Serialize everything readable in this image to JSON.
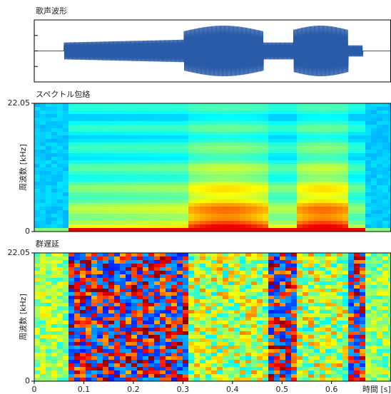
{
  "chart_data": [
    {
      "type": "waveform",
      "title": "歌声波形",
      "color": "#2a5ba8"
    },
    {
      "type": "envelope",
      "title": "スペクトル包絡",
      "ylabel": "周波数 [kHz]",
      "ylim": [
        0,
        22.05
      ],
      "yticks": [
        0,
        22.05
      ]
    },
    {
      "type": "groupdelay",
      "title": "群遅延",
      "ylabel": "周波数 [kHz]",
      "ylim": [
        0,
        22.05
      ],
      "yticks": [
        0,
        22.05
      ],
      "xlim": [
        0,
        0.72
      ],
      "xticks": [
        0,
        0.1,
        0.2,
        0.3,
        0.4,
        0.5,
        0.6
      ],
      "xlabel": "時間 [s]"
    }
  ]
}
